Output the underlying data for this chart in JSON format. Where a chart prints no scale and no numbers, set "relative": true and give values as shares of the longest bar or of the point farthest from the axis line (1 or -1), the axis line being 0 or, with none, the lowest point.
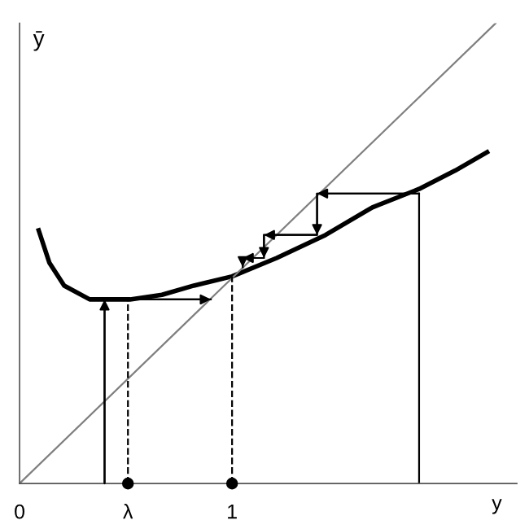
{
  "chart_data": {
    "type": "line",
    "relative": true,
    "xlabel": "y",
    "ylabel": "ȳ",
    "xlim": [
      0,
      2.34
    ],
    "xticks": [
      {
        "value": 0,
        "label": "0"
      },
      {
        "value": 0.51,
        "label": "λ"
      },
      {
        "value": 1,
        "label": "1"
      }
    ],
    "grid": false,
    "legend": false,
    "series": [
      {
        "color": "#000000",
        "x": [
          0.09,
          0.14,
          0.21,
          0.33,
          0.52,
          0.67,
          0.82,
          1.0,
          1.21,
          1.44,
          1.66,
          1.88,
          2.05,
          2.2
        ],
        "values": [
          0.55,
          0.48,
          0.43,
          0.4,
          0.4,
          0.41,
          0.43,
          0.45,
          0.49,
          0.54,
          0.6,
          0.64,
          0.68,
          0.72
        ]
      },
      {
        "color": "#808080",
        "x": [
          0,
          2.24
        ],
        "values": [
          0,
          1.0
        ]
      },
      {
        "color": "#000000",
        "line_style": "dashed",
        "x": [
          0.51,
          0.51
        ],
        "values": [
          0,
          0.4
        ]
      },
      {
        "color": "#000000",
        "line_style": "dashed",
        "x": [
          1.0,
          1.0
        ],
        "values": [
          0,
          0.45
        ]
      },
      {
        "color": "#000000",
        "x": [
          1.88,
          1.88
        ],
        "values": [
          0,
          0.63
        ]
      },
      {
        "color": "#000000",
        "x": [
          1.88,
          1.4,
          1.4,
          1.15,
          1.15,
          1.05,
          1.05
        ],
        "values": [
          0.63,
          0.63,
          0.54,
          0.54,
          0.49,
          0.49,
          0.47
        ]
      },
      {
        "color": "#000000",
        "x": [
          0.4,
          0.4,
          0.9
        ],
        "values": [
          0,
          0.4,
          0.4
        ]
      },
      {
        "type": "scatter",
        "marker": "circle",
        "color": "#000000",
        "x": [
          0.51,
          1.0
        ],
        "values": [
          0,
          0
        ]
      }
    ]
  }
}
